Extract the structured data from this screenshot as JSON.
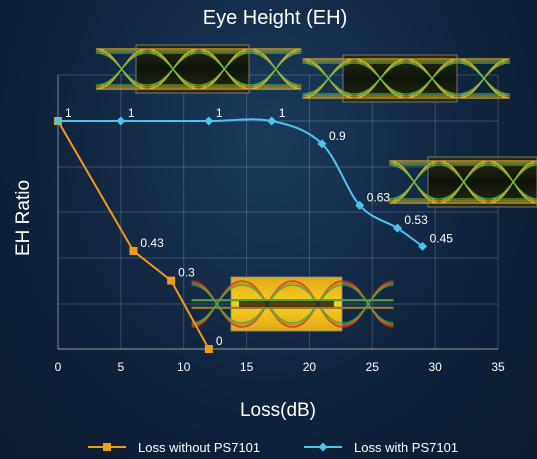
{
  "chart_data": {
    "type": "line",
    "title": "Eye Height (EH)",
    "xlabel": "Loss(dB)",
    "ylabel": "EH Ratio",
    "xlim": [
      0,
      35
    ],
    "ylim": [
      0,
      1
    ],
    "x_ticks": [
      "0",
      "5",
      "10",
      "15",
      "20",
      "25",
      "30",
      "35"
    ],
    "grid": true,
    "legend_position": "bottom",
    "series": [
      {
        "name": "Loss without PS7101",
        "color": "#f29a1a",
        "marker": "square",
        "x": [
          0,
          6,
          9,
          12
        ],
        "y": [
          1,
          0.43,
          0.3,
          0
        ],
        "labels": [
          "",
          "0.43",
          "0.3",
          "0"
        ]
      },
      {
        "name": "Loss with PS7101",
        "color": "#4cc4f0",
        "marker": "diamond",
        "x": [
          0,
          5,
          12,
          17,
          21,
          24,
          27,
          29
        ],
        "y": [
          1,
          1,
          1,
          1,
          0.9,
          0.63,
          0.53,
          0.45
        ],
        "labels": [
          "1",
          "1",
          "1",
          "1",
          "0.9",
          "0.63",
          "0.53",
          "0.45"
        ]
      }
    ],
    "inset_images": [
      "eye-diagram",
      "eye-diagram",
      "eye-diagram",
      "eye-diagram"
    ]
  }
}
